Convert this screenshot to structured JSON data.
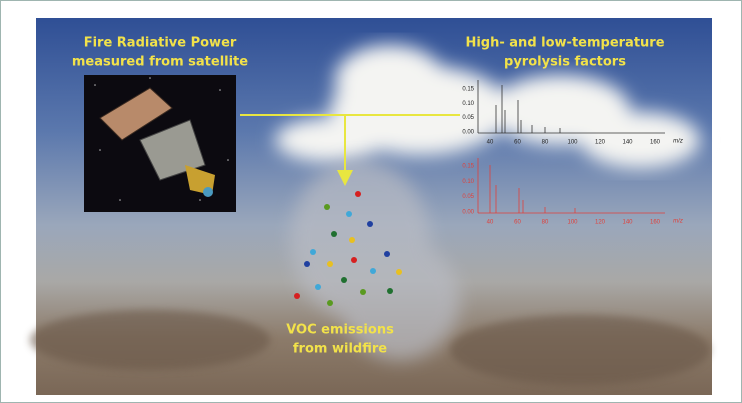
{
  "left_label": {
    "line1": "Fire Radiative Power",
    "line2": "measured from satellite"
  },
  "right_label": {
    "line1": "High- and low-temperature",
    "line2": "pyrolysis factors"
  },
  "bottom_label": {
    "line1": "VOC emissions",
    "line2": "from wildfire"
  },
  "spectrum_top": {
    "yticks": [
      "0.15",
      "0.10",
      "0.05",
      "0.00"
    ],
    "xticks": [
      "40",
      "60",
      "80",
      "100",
      "120",
      "140",
      "160"
    ],
    "xlabel": "m/z"
  },
  "spectrum_bottom": {
    "yticks": [
      "0.15",
      "0.10",
      "0.05",
      "0.00"
    ],
    "xticks": [
      "40",
      "60",
      "80",
      "100",
      "120",
      "140",
      "160"
    ],
    "xlabel": "m/z"
  }
}
